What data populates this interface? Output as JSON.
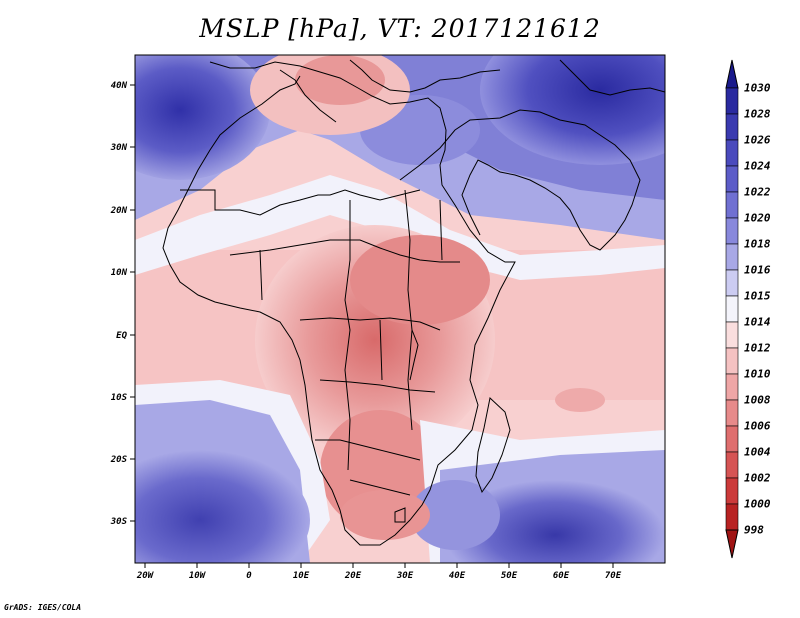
{
  "title": "MSLP [hPa], VT: 2017121612",
  "credit": "GrADS: IGES/COLA",
  "lat_labels": [
    "40N",
    "30N",
    "20N",
    "10N",
    "EQ",
    "10S",
    "20S",
    "30S"
  ],
  "lon_labels": [
    "20W",
    "10W",
    "0",
    "10E",
    "20E",
    "30E",
    "40E",
    "50E",
    "60E",
    "70E"
  ],
  "colorbar": {
    "levels": [
      "1030",
      "1028",
      "1026",
      "1024",
      "1022",
      "1020",
      "1018",
      "1016",
      "1015",
      "1014",
      "1012",
      "1010",
      "1008",
      "1006",
      "1004",
      "1002",
      "1000",
      "998"
    ],
    "colors": [
      "#1a1a8c",
      "#2a2aa0",
      "#3a3ab0",
      "#4a4abd",
      "#5c5cc8",
      "#7070d2",
      "#8888dc",
      "#a8a8e6",
      "#ccccf2",
      "#f4f4fb",
      "#fadede",
      "#f5c2c2",
      "#efa6a6",
      "#e78a8a",
      "#df6e6e",
      "#d65454",
      "#cc3a3a",
      "#b82222",
      "#a01414"
    ]
  }
}
